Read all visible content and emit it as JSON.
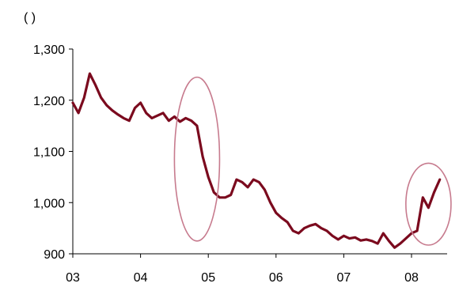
{
  "chart_data": {
    "type": "line",
    "title": "",
    "unit_label": "(  )",
    "xlabel": "",
    "ylabel": "",
    "x_ticks": [
      "03",
      "04",
      "05",
      "06",
      "07",
      "08"
    ],
    "y_ticks": [
      "900",
      "1,000",
      "1,100",
      "1,200",
      "1,300"
    ],
    "ylim": [
      900,
      1300
    ],
    "xlim": [
      "2003-01",
      "2008-06"
    ],
    "grid": false,
    "legend": "none",
    "series": [
      {
        "color": "#7b0a1e",
        "points": [
          [
            "2003-01",
            1195
          ],
          [
            "2003-02",
            1175
          ],
          [
            "2003-03",
            1205
          ],
          [
            "2003-04",
            1252
          ],
          [
            "2003-05",
            1230
          ],
          [
            "2003-06",
            1205
          ],
          [
            "2003-07",
            1190
          ],
          [
            "2003-08",
            1180
          ],
          [
            "2003-09",
            1172
          ],
          [
            "2003-10",
            1165
          ],
          [
            "2003-11",
            1160
          ],
          [
            "2003-12",
            1185
          ],
          [
            "2004-01",
            1195
          ],
          [
            "2004-02",
            1175
          ],
          [
            "2004-03",
            1165
          ],
          [
            "2004-04",
            1170
          ],
          [
            "2004-05",
            1175
          ],
          [
            "2004-06",
            1160
          ],
          [
            "2004-07",
            1168
          ],
          [
            "2004-08",
            1158
          ],
          [
            "2004-09",
            1165
          ],
          [
            "2004-10",
            1160
          ],
          [
            "2004-11",
            1150
          ],
          [
            "2004-12",
            1090
          ],
          [
            "2005-01",
            1050
          ],
          [
            "2005-02",
            1020
          ],
          [
            "2005-03",
            1010
          ],
          [
            "2005-04",
            1010
          ],
          [
            "2005-05",
            1015
          ],
          [
            "2005-06",
            1045
          ],
          [
            "2005-07",
            1040
          ],
          [
            "2005-08",
            1030
          ],
          [
            "2005-09",
            1045
          ],
          [
            "2005-10",
            1040
          ],
          [
            "2005-11",
            1025
          ],
          [
            "2005-12",
            1000
          ],
          [
            "2006-01",
            980
          ],
          [
            "2006-02",
            970
          ],
          [
            "2006-03",
            962
          ],
          [
            "2006-04",
            945
          ],
          [
            "2006-05",
            940
          ],
          [
            "2006-06",
            950
          ],
          [
            "2006-07",
            955
          ],
          [
            "2006-08",
            958
          ],
          [
            "2006-09",
            950
          ],
          [
            "2006-10",
            945
          ],
          [
            "2006-11",
            935
          ],
          [
            "2006-12",
            928
          ],
          [
            "2007-01",
            935
          ],
          [
            "2007-02",
            930
          ],
          [
            "2007-03",
            932
          ],
          [
            "2007-04",
            926
          ],
          [
            "2007-05",
            928
          ],
          [
            "2007-06",
            925
          ],
          [
            "2007-07",
            920
          ],
          [
            "2007-08",
            940
          ],
          [
            "2007-09",
            925
          ],
          [
            "2007-10",
            912
          ],
          [
            "2007-11",
            920
          ],
          [
            "2007-12",
            930
          ],
          [
            "2008-01",
            940
          ],
          [
            "2008-02",
            945
          ],
          [
            "2008-03",
            1010
          ],
          [
            "2008-04",
            990
          ],
          [
            "2008-05",
            1020
          ],
          [
            "2008-06",
            1045
          ]
        ]
      }
    ],
    "annotations": [
      {
        "shape": "ellipse",
        "x_center": "2004-11",
        "y_center": 1085,
        "x_span_months": 8,
        "y_span": 320,
        "color": "#c77b8e"
      },
      {
        "shape": "ellipse",
        "x_center": "2008-04",
        "y_center": 997,
        "x_span_months": 8,
        "y_span": 160,
        "color": "#c77b8e"
      }
    ]
  }
}
